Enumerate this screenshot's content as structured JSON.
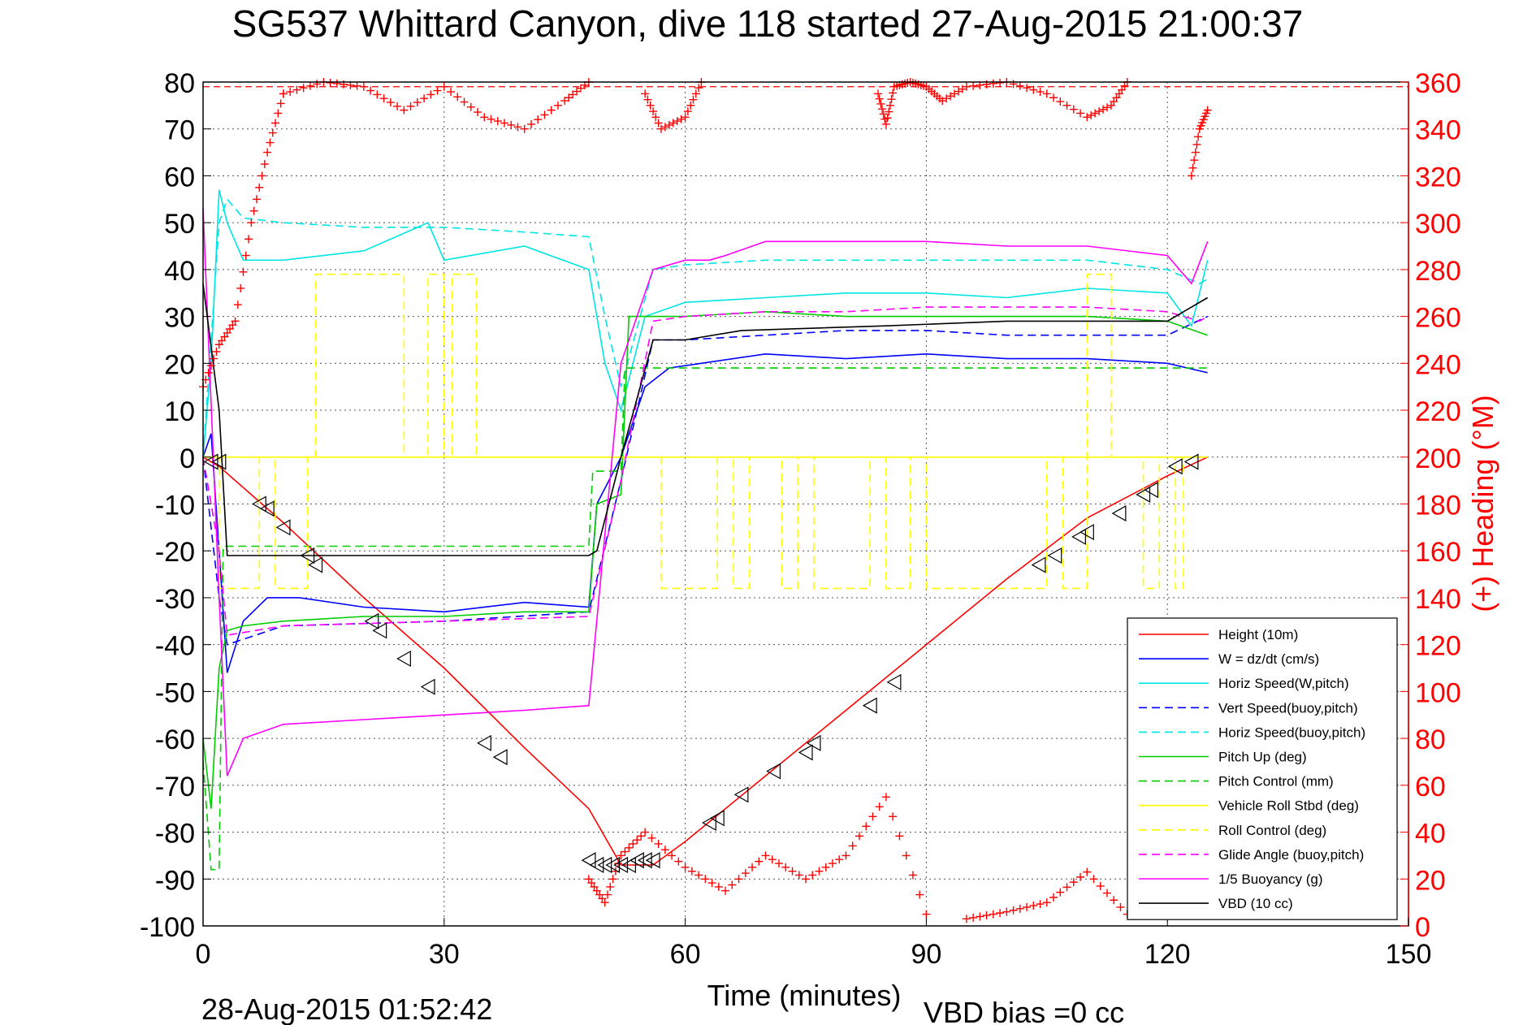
{
  "chart_data": {
    "type": "line",
    "title": "SG537 Whittard Canyon, dive 118 started 27-Aug-2015 21:00:37",
    "xlabel": "Time (minutes)",
    "ylabel": "",
    "y2label": "(+) Heading (°M)",
    "footer_left": "28-Aug-2015 01:52:42",
    "footer_right": "VBD bias =0 cc",
    "xlim": [
      0,
      150
    ],
    "ylim": [
      -100,
      80
    ],
    "y2lim": [
      0,
      360
    ],
    "xticks": [
      0,
      30,
      60,
      90,
      120,
      150
    ],
    "yticks": [
      80,
      70,
      60,
      50,
      40,
      30,
      20,
      10,
      0,
      -10,
      -20,
      -30,
      -40,
      -50,
      -60,
      -70,
      -80,
      -90,
      -100
    ],
    "y2ticks": [
      360,
      340,
      320,
      300,
      280,
      260,
      240,
      220,
      200,
      180,
      160,
      140,
      120,
      100,
      80,
      60,
      40,
      20,
      0
    ],
    "grid": true,
    "legend_position": "bottom-right",
    "series": [
      {
        "name": "Height (10m)",
        "color": "#ff0000",
        "style": "solid",
        "x": [
          0,
          2,
          10,
          20,
          30,
          40,
          48,
          52,
          56,
          60,
          70,
          80,
          90,
          100,
          110,
          120,
          125
        ],
        "y": [
          0,
          -2,
          -14,
          -30,
          -45,
          -62,
          -75,
          -87,
          -87,
          -82,
          -68,
          -54,
          -40,
          -26,
          -13,
          -4,
          0
        ]
      },
      {
        "name": "W = dz/dt (cm/s)",
        "color": "#0000ff",
        "style": "solid",
        "x": [
          0,
          1,
          2,
          3,
          5,
          8,
          12,
          20,
          30,
          40,
          48,
          49,
          52,
          55,
          58,
          62,
          70,
          80,
          90,
          100,
          110,
          120,
          125
        ],
        "y": [
          0,
          5,
          -20,
          -46,
          -35,
          -30,
          -30,
          -32,
          -33,
          -31,
          -32,
          -10,
          0,
          15,
          19,
          20,
          22,
          21,
          22,
          21,
          21,
          20,
          18
        ]
      },
      {
        "name": "Horiz Speed(W,pitch)",
        "color": "#00e5e5",
        "style": "solid",
        "x": [
          0,
          1,
          2,
          3,
          5,
          10,
          20,
          28,
          30,
          40,
          48,
          50,
          52,
          55,
          60,
          70,
          80,
          90,
          100,
          110,
          120,
          123,
          125
        ],
        "y": [
          0,
          20,
          57,
          50,
          42,
          42,
          44,
          50,
          42,
          45,
          40,
          20,
          10,
          30,
          33,
          34,
          35,
          35,
          34,
          36,
          35,
          28,
          42
        ]
      },
      {
        "name": "Vert Speed(buoy,pitch)",
        "color": "#0000ff",
        "style": "dashed",
        "x": [
          0,
          2,
          3,
          10,
          30,
          48,
          52,
          56,
          60,
          70,
          80,
          90,
          100,
          110,
          120,
          125
        ],
        "y": [
          0,
          -30,
          -40,
          -36,
          -35,
          -33,
          -5,
          25,
          25,
          26,
          27,
          27,
          26,
          26,
          26,
          30
        ]
      },
      {
        "name": "Horiz Speed(buoy,pitch)",
        "color": "#00e5e5",
        "style": "dashed",
        "x": [
          0,
          2,
          3,
          5,
          10,
          20,
          30,
          40,
          48,
          50,
          52,
          56,
          60,
          70,
          80,
          90,
          100,
          110,
          120,
          124,
          125
        ],
        "y": [
          0,
          50,
          55,
          51,
          50,
          49,
          49,
          48,
          47,
          30,
          15,
          40,
          41,
          42,
          42,
          42,
          42,
          42,
          40,
          37,
          38
        ]
      },
      {
        "name": "Pitch Up (deg)",
        "color": "#00cc00",
        "style": "solid",
        "x": [
          0,
          1,
          2,
          3,
          5,
          10,
          20,
          30,
          40,
          48,
          49,
          52,
          53,
          56,
          60,
          70,
          80,
          90,
          100,
          110,
          120,
          125
        ],
        "y": [
          -60,
          -75,
          -45,
          -37,
          -36,
          -35,
          -34,
          -34,
          -33,
          -33,
          -10,
          -8,
          30,
          30,
          30,
          31,
          30,
          30,
          30,
          30,
          29,
          26
        ]
      },
      {
        "name": "Pitch Control (mm)",
        "color": "#00cc00",
        "style": "dashed",
        "x": [
          0,
          1,
          2,
          2.5,
          3,
          48,
          48.5,
          52,
          52.5,
          56,
          125
        ],
        "y": [
          -65,
          -88,
          -88,
          -19,
          -19,
          -19,
          -3,
          -3,
          19,
          19,
          19
        ]
      },
      {
        "name": "Vehicle Roll Stbd (deg)",
        "color": "#ffff00",
        "style": "solid",
        "x": [
          0,
          125
        ],
        "y": [
          0,
          0
        ]
      },
      {
        "name": "Roll Control (deg)",
        "color": "#ffff00",
        "style": "dashed",
        "x": [
          0,
          2,
          2,
          7,
          7,
          9,
          9,
          13,
          13,
          14,
          14,
          25,
          25,
          28,
          28,
          30,
          30,
          31,
          31,
          34,
          34,
          48,
          48,
          57,
          57,
          64,
          64,
          66,
          66,
          68,
          68,
          72,
          72,
          74,
          74,
          76,
          76,
          83,
          83,
          85,
          85,
          88,
          88,
          90,
          90,
          105,
          105,
          107,
          107,
          110,
          110,
          113,
          113,
          117,
          117,
          119,
          119,
          121,
          121,
          122,
          122,
          125
        ],
        "y": [
          0,
          0,
          -28,
          -28,
          0,
          0,
          -28,
          -28,
          0,
          0,
          39,
          39,
          0,
          0,
          39,
          39,
          0,
          0,
          39,
          39,
          0,
          0,
          0,
          0,
          -28,
          -28,
          0,
          0,
          -28,
          -28,
          0,
          0,
          -28,
          -28,
          0,
          0,
          -28,
          -28,
          0,
          0,
          -28,
          -28,
          0,
          0,
          -28,
          -28,
          0,
          0,
          -28,
          -28,
          39,
          39,
          0,
          0,
          -28,
          -28,
          0,
          0,
          -28,
          -28,
          0,
          0
        ]
      },
      {
        "name": "Glide Angle (buoy,pitch)",
        "color": "#ff00ff",
        "style": "dashed",
        "x": [
          0,
          2,
          3,
          10,
          30,
          48,
          52,
          56,
          60,
          70,
          80,
          90,
          100,
          110,
          120,
          124,
          125
        ],
        "y": [
          0,
          -20,
          -38,
          -36,
          -35,
          -34,
          -5,
          29,
          30,
          31,
          31,
          32,
          32,
          32,
          31,
          29,
          30
        ]
      },
      {
        "name": "1/5 Buoyancy (g)",
        "color": "#ff00ff",
        "style": "solid",
        "x": [
          0,
          2,
          3,
          5,
          10,
          20,
          30,
          40,
          48,
          52,
          56,
          60,
          63,
          65,
          70,
          80,
          90,
          100,
          110,
          120,
          123,
          125
        ],
        "y": [
          53,
          -30,
          -68,
          -60,
          -57,
          -56,
          -55,
          -54,
          -53,
          20,
          40,
          42,
          42,
          43,
          46,
          46,
          46,
          45,
          45,
          43,
          37,
          46
        ]
      },
      {
        "name": "VBD (10 cc)",
        "color": "#000000",
        "style": "solid",
        "x": [
          0,
          2,
          3,
          48,
          49,
          52,
          56,
          60,
          67,
          85,
          100,
          112,
          120,
          125
        ],
        "y": [
          37,
          10,
          -21,
          -21,
          -20,
          0,
          25,
          25,
          27,
          28,
          29,
          29,
          29,
          34
        ]
      }
    ],
    "heading_series": {
      "name": "Heading",
      "axis": "right",
      "color": "#ff0000",
      "marker": "+",
      "segments": [
        {
          "x": [
            0,
            2,
            4,
            6,
            8,
            10
          ],
          "y": [
            230,
            248,
            258,
            300,
            330,
            355
          ]
        },
        {
          "x": [
            10,
            15,
            20,
            25,
            30,
            35,
            40,
            45,
            48
          ],
          "y": [
            355,
            360,
            358,
            348,
            358,
            345,
            340,
            352,
            360
          ]
        },
        {
          "x": [
            48,
            50,
            52,
            55,
            60,
            65,
            70,
            75,
            80,
            85,
            90
          ],
          "y": [
            20,
            10,
            30,
            40,
            25,
            15,
            30,
            20,
            30,
            55,
            5
          ]
        },
        {
          "x": [
            55,
            57,
            60,
            62
          ],
          "y": [
            355,
            340,
            345,
            360
          ]
        },
        {
          "x": [
            84,
            85,
            86,
            88,
            90,
            92,
            95,
            100,
            105,
            110,
            113,
            115
          ],
          "y": [
            355,
            342,
            358,
            360,
            358,
            352,
            358,
            360,
            355,
            345,
            350,
            360
          ]
        },
        {
          "x": [
            95,
            100,
            105,
            110,
            115,
            119,
            122
          ],
          "y": [
            3,
            6,
            10,
            23,
            5,
            25,
            30
          ]
        },
        {
          "x": [
            123,
            124,
            125
          ],
          "y": [
            320,
            340,
            348
          ]
        }
      ],
      "dashed_reference": 358
    },
    "markers": {
      "symbol": "triangle-left",
      "x": [
        1,
        2,
        7,
        8,
        10,
        13,
        14,
        21,
        22,
        25,
        28,
        35,
        37,
        48,
        49,
        50,
        51,
        52,
        53,
        54,
        55,
        56,
        63,
        64,
        67,
        71,
        75,
        76,
        83,
        86,
        104,
        106,
        109,
        110,
        114,
        117,
        118,
        121,
        123
      ],
      "y": [
        -1,
        -1,
        -10,
        -11,
        -15,
        -21,
        -23,
        -35,
        -37,
        -43,
        -49,
        -61,
        -64,
        -86,
        -87,
        -87,
        -87,
        -87,
        -87,
        -86,
        -86,
        -86,
        -78,
        -77,
        -72,
        -67,
        -63,
        -61,
        -53,
        -48,
        -23,
        -21,
        -17,
        -16,
        -12,
        -8,
        -7,
        -2,
        -1
      ]
    }
  }
}
